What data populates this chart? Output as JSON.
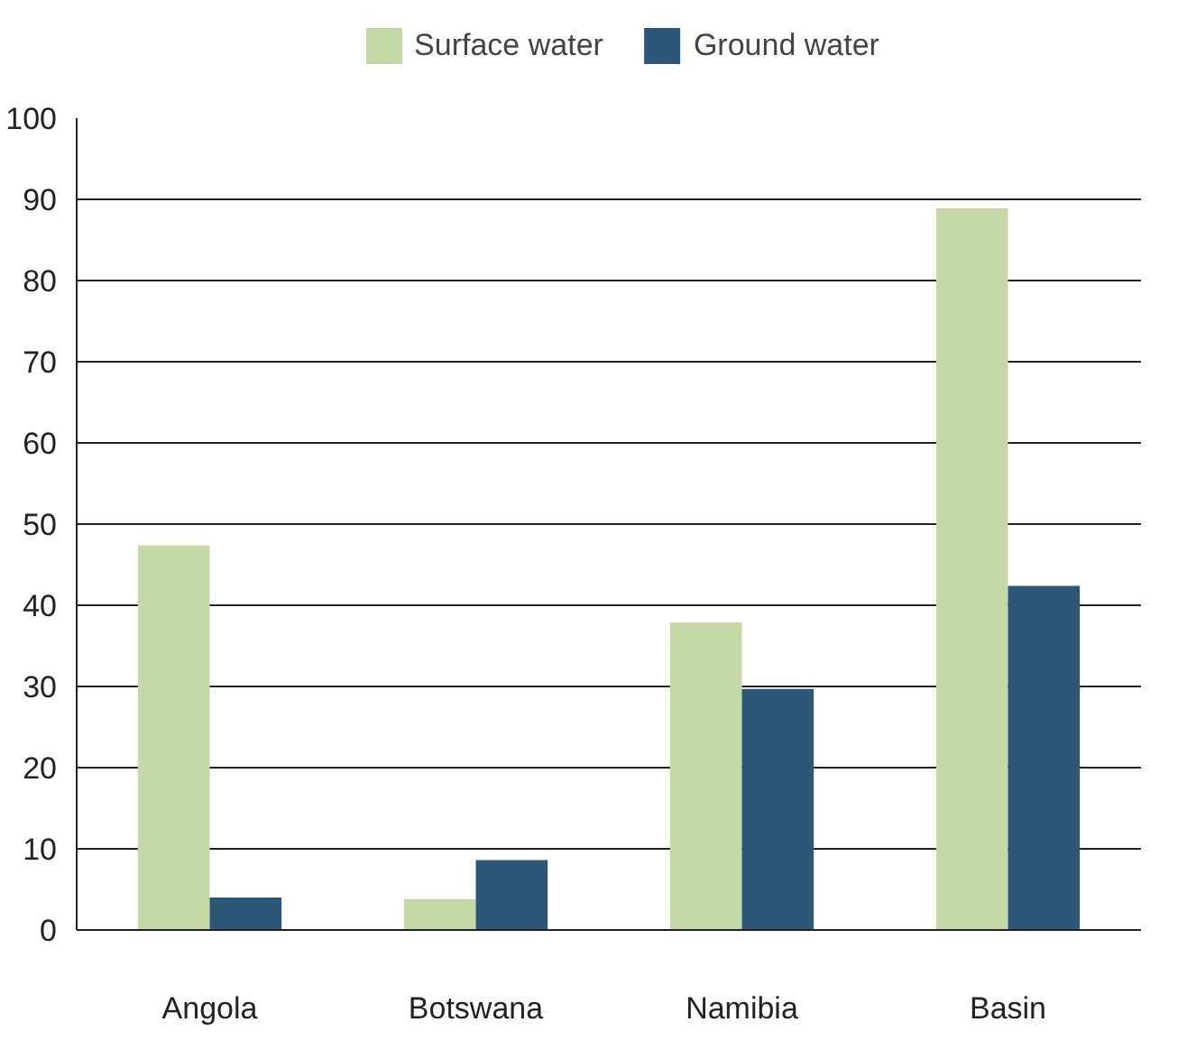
{
  "chart_data": {
    "type": "bar",
    "categories": [
      "Angola",
      "Botswana",
      "Namibia",
      "Basin"
    ],
    "series": [
      {
        "name": "Surface water",
        "color": "#c5d9a8",
        "values": [
          47.4,
          3.8,
          37.9,
          88.9
        ]
      },
      {
        "name": "Ground water",
        "color": "#2e5677",
        "values": [
          4.0,
          8.6,
          29.7,
          42.4
        ]
      }
    ],
    "ylim": [
      0,
      100
    ],
    "yticks": [
      0,
      10,
      20,
      30,
      40,
      50,
      60,
      70,
      80,
      90,
      100
    ],
    "grid": "y",
    "legend": "top"
  }
}
